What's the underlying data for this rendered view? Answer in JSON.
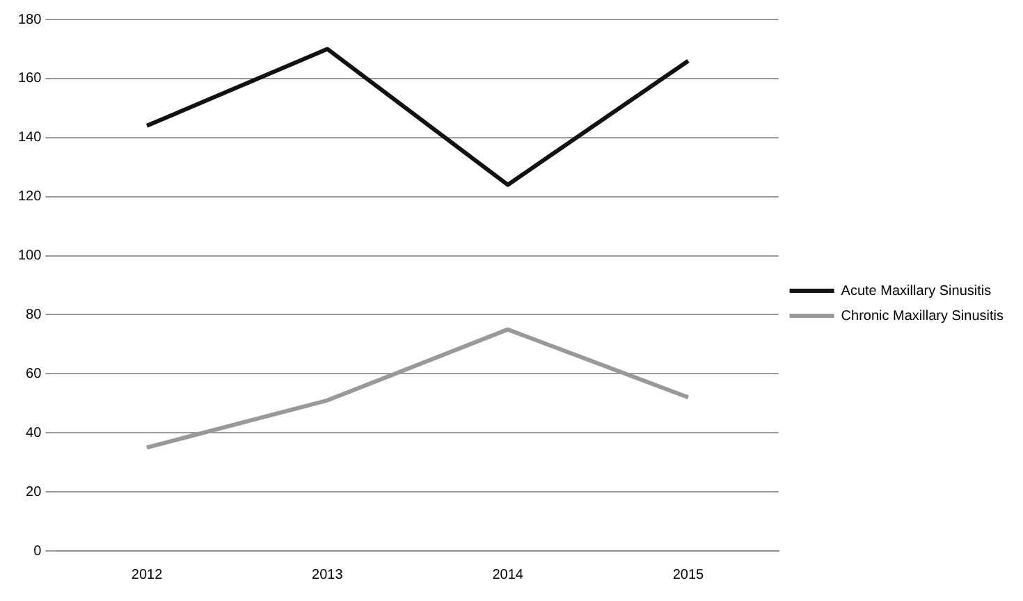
{
  "chart_data": {
    "type": "line",
    "categories": [
      "2012",
      "2013",
      "2014",
      "2015"
    ],
    "series": [
      {
        "name": "Acute Maxillary Sinusitis",
        "color": "#111111",
        "values": [
          144,
          170,
          124,
          166
        ]
      },
      {
        "name": "Chronic Maxillary Sinusitis",
        "color": "#999999",
        "values": [
          35,
          51,
          75,
          52
        ]
      }
    ],
    "ylim": [
      0,
      180
    ],
    "yticks": [
      0,
      20,
      40,
      60,
      80,
      100,
      120,
      140,
      160,
      180
    ],
    "grid": "y",
    "legend": "right",
    "marker": "none",
    "line_style": "solid"
  }
}
